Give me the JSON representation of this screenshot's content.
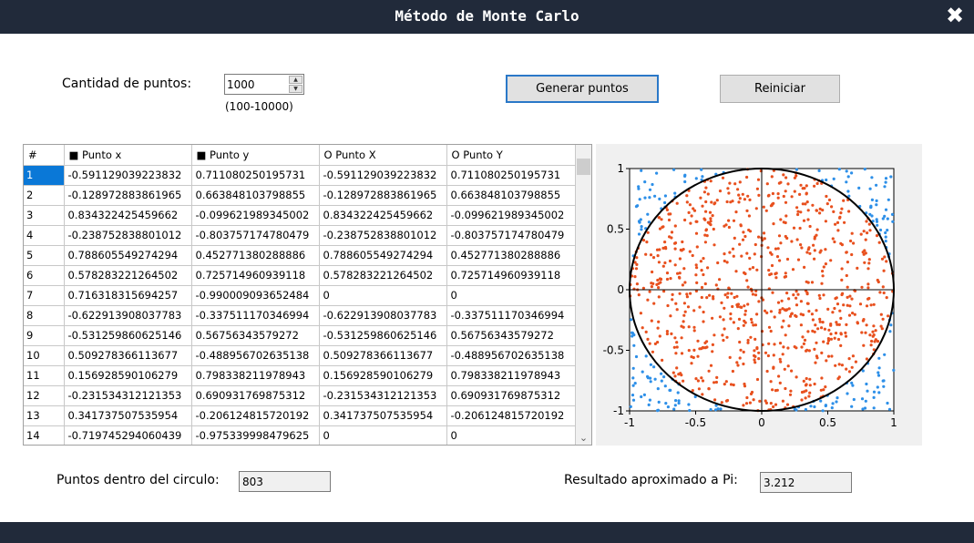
{
  "window": {
    "title": "Método de Monte Carlo",
    "close_glyph": "✖"
  },
  "controls": {
    "points_label": "Cantidad de puntos:",
    "points_value": "1000",
    "range_hint": "(100-10000)",
    "generate_button": "Generar puntos",
    "reset_button": "Reiniciar"
  },
  "table": {
    "headers": [
      "#",
      "■ Punto x",
      "■ Punto y",
      "O Punto X",
      "O Punto Y"
    ],
    "rows": [
      [
        "1",
        "-0.591129039223832",
        "0.711080250195731",
        "-0.591129039223832",
        "0.711080250195731"
      ],
      [
        "2",
        "-0.128972883861965",
        "0.663848103798855",
        "-0.128972883861965",
        "0.663848103798855"
      ],
      [
        "3",
        "0.834322425459662",
        "-0.099621989345002",
        "0.834322425459662",
        "-0.099621989345002"
      ],
      [
        "4",
        "-0.238752838801012",
        "-0.803757174780479",
        "-0.238752838801012",
        "-0.803757174780479"
      ],
      [
        "5",
        "0.788605549274294",
        "0.452771380288886",
        "0.788605549274294",
        "0.452771380288886"
      ],
      [
        "6",
        "0.578283221264502",
        "0.725714960939118",
        "0.578283221264502",
        "0.725714960939118"
      ],
      [
        "7",
        "0.716318315694257",
        "-0.990009093652484",
        "0",
        "0"
      ],
      [
        "8",
        "-0.622913908037783",
        "-0.337511170346994",
        "-0.622913908037783",
        "-0.337511170346994"
      ],
      [
        "9",
        "-0.531259860625146",
        "0.56756343579272",
        "-0.531259860625146",
        "0.56756343579272"
      ],
      [
        "10",
        "0.509278366113677",
        "-0.488956702635138",
        "0.509278366113677",
        "-0.488956702635138"
      ],
      [
        "11",
        "0.156928590106279",
        "0.798338211978943",
        "0.156928590106279",
        "0.798338211978943"
      ],
      [
        "12",
        "-0.231534312121353",
        "0.690931769875312",
        "-0.231534312121353",
        "0.690931769875312"
      ],
      [
        "13",
        "0.341737507535954",
        "-0.206124815720192",
        "0.341737507535954",
        "-0.206124815720192"
      ],
      [
        "14",
        "-0.719745294060439",
        "-0.975339998479625",
        "0",
        "0"
      ]
    ]
  },
  "chart_data": {
    "type": "scatter",
    "xlim": [
      -1,
      1
    ],
    "ylim": [
      -1,
      1
    ],
    "xticks": [
      "-1",
      "-0.5",
      "0",
      "0.5",
      "1"
    ],
    "yticks": [
      "-1",
      "-0.5",
      "0",
      "0.5",
      "1"
    ],
    "grid": false,
    "total_points": 1000,
    "inside_points": 803,
    "shapes": [
      "unit circle",
      "axes through origin"
    ],
    "colors": {
      "inside": "#e8501e",
      "outside": "#2d8fe8",
      "circle": "#000000"
    }
  },
  "results": {
    "inside_label": "Puntos dentro del circulo:",
    "inside_value": "803",
    "pi_label": "Resultado aproximado a Pi:",
    "pi_value": "3.212"
  },
  "icons": {
    "close": "close-icon",
    "spin_up": "spin-up-icon",
    "spin_down": "spin-down-icon"
  }
}
